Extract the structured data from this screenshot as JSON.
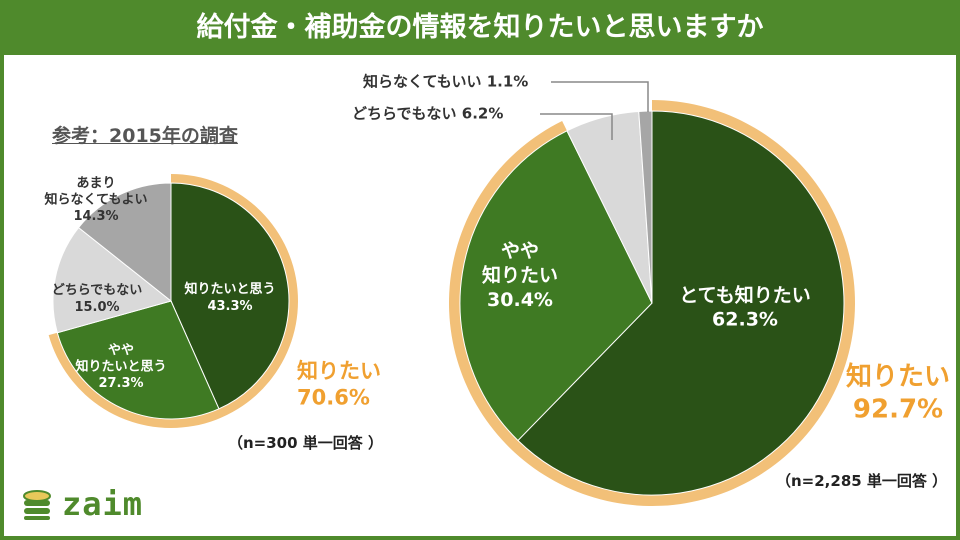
{
  "header": {
    "title": "給付金・補助金の情報を知りたいと思いますか"
  },
  "colors": {
    "brand_green": "#4f8a2c",
    "dark_green": "#2a5217",
    "mid_green": "#3f7a23",
    "light_gray": "#d9d9d9",
    "mid_gray": "#a6a6a6",
    "ring_orange": "#f2c078",
    "accent_orange": "#f0a030"
  },
  "chart_data": [
    {
      "type": "pie",
      "title": "参考：2015年の調査",
      "note": "（n=300 単一回答 ）",
      "slices": [
        {
          "label_lines": [
            "知りたいと思う"
          ],
          "value": 43.3,
          "value_text": "43.3%",
          "color": "#2a5217",
          "text_color": "#ffffff"
        },
        {
          "label_lines": [
            "やや",
            "知りたいと思う"
          ],
          "value": 27.3,
          "value_text": "27.3%",
          "color": "#3f7a23",
          "text_color": "#ffffff"
        },
        {
          "label_lines": [
            "どちらでもない"
          ],
          "value": 15.0,
          "value_text": "15.0%",
          "color": "#d9d9d9",
          "text_color": "#333333"
        },
        {
          "label_lines": [
            "あまり",
            "知らなくてもよい"
          ],
          "value": 14.3,
          "value_text": "14.3%",
          "color": "#a6a6a6",
          "text_color": "#333333"
        }
      ],
      "highlight": {
        "label": "知りたい",
        "value_text": "70.6%",
        "value": 70.6
      }
    },
    {
      "type": "pie",
      "title": "",
      "note": "（n=2,285 単一回答 ）",
      "slices": [
        {
          "label_lines": [
            "とても知りたい"
          ],
          "value": 62.3,
          "value_text": "62.3%",
          "color": "#2a5217",
          "text_color": "#ffffff"
        },
        {
          "label_lines": [
            "やや",
            "知りたい"
          ],
          "value": 30.4,
          "value_text": "30.4%",
          "color": "#3f7a23",
          "text_color": "#ffffff"
        },
        {
          "label_lines": [
            "どちらでもない"
          ],
          "value": 6.2,
          "value_text": "6.2%",
          "color": "#d9d9d9",
          "text_color": "#333333"
        },
        {
          "label_lines": [
            "知らなくてもいい"
          ],
          "value": 1.1,
          "value_text": "1.1%",
          "color": "#a6a6a6",
          "text_color": "#333333"
        }
      ],
      "highlight": {
        "label": "知りたい",
        "value_text": "92.7%",
        "value": 92.7
      }
    }
  ],
  "logo": {
    "text": "zaim"
  }
}
